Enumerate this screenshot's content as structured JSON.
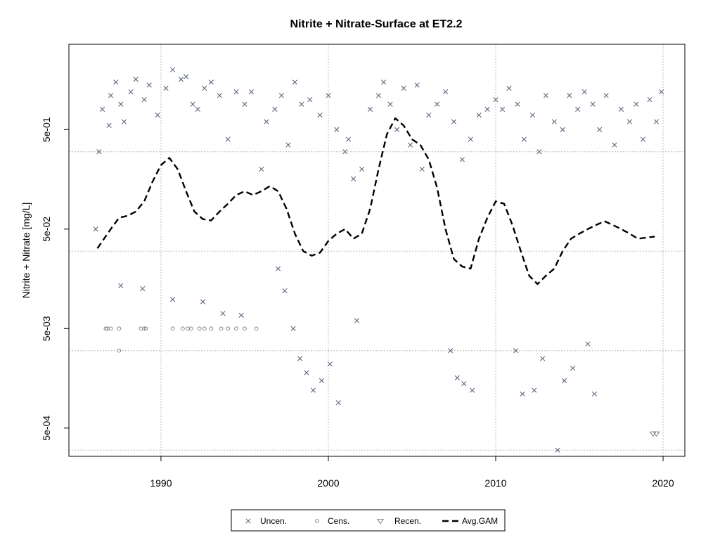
{
  "chart_data": {
    "type": "scatter",
    "title": "Nitrite + Nitrate-Surface at ET2.2",
    "xlabel": "",
    "ylabel": "Nitrite + Nitrate [mg/L]",
    "y_scale": "log10",
    "xlim": [
      1984.5,
      2021.3
    ],
    "ylim": [
      0.00026,
      3.6
    ],
    "x_ticks": [
      1990,
      2000,
      2010,
      2020
    ],
    "x_tick_labels": [
      "1990",
      "2000",
      "2010",
      "2020"
    ],
    "y_ticks": [
      0.0005,
      0.005,
      0.05,
      0.5
    ],
    "y_tick_labels": [
      "5e-04",
      "5e-03",
      "5e-02",
      "5e-01"
    ],
    "y_gridlines": [
      0.0003,
      0.003,
      0.03,
      0.3
    ],
    "x_gridlines": [
      1990,
      2000,
      2010,
      2020
    ],
    "grid": true,
    "legend_position": "bottom-center",
    "legend": [
      {
        "name": "Uncen.",
        "symbol": "x"
      },
      {
        "name": "Cens.",
        "symbol": "circle"
      },
      {
        "name": "Recen.",
        "symbol": "triangle-down"
      },
      {
        "name": "Avg.GAM",
        "symbol": "dashed-line"
      }
    ],
    "colors": {
      "points": "#4f5b75",
      "gam": "#000000",
      "grid": "#bebebe"
    },
    "series": [
      {
        "name": "Uncen.",
        "marker": "x",
        "x": [
          1986.1,
          1986.3,
          1986.5,
          1986.9,
          1987.0,
          1987.3,
          1987.6,
          1987.8,
          1988.2,
          1988.5,
          1989.0,
          1989.3,
          1989.8,
          1990.3,
          1990.7,
          1991.2,
          1991.5,
          1991.9,
          1992.2,
          1992.6,
          1993.0,
          1993.5,
          1994.0,
          1994.5,
          1995.0,
          1995.4,
          1996.0,
          1996.3,
          1996.8,
          1997.2,
          1997.6,
          1998.0,
          1998.4,
          1998.9,
          1999.5,
          2000.0,
          2000.5,
          2001.0,
          2001.2,
          2001.5,
          2002.0,
          2002.5,
          2003.0,
          2003.3,
          2003.7,
          2004.1,
          2004.5,
          2004.9,
          2005.3,
          2005.6,
          2006.0,
          2006.5,
          2007.0,
          2007.5,
          2008.0,
          2008.5,
          2009.0,
          2009.5,
          2010.0,
          2010.4,
          2010.8,
          2011.3,
          2011.7,
          2012.2,
          2012.6,
          2013.0,
          2013.5,
          2014.0,
          2014.4,
          2014.9,
          2015.3,
          2015.8,
          2016.2,
          2016.6,
          2017.1,
          2017.5,
          2018.0,
          2018.4,
          2018.8,
          2019.2,
          2019.6,
          2019.9,
          1997.0,
          1997.4,
          1997.9,
          1998.3,
          1998.7,
          1999.1,
          1999.6,
          2000.1,
          2000.6,
          2001.7,
          2007.3,
          2007.7,
          2008.1,
          2008.6,
          2011.2,
          2011.6,
          2012.3,
          2012.8,
          2013.7,
          2014.1,
          2014.6,
          2015.5,
          2015.9,
          1993.7,
          1994.8,
          1992.5,
          1990.7,
          1988.9,
          1987.6
        ],
        "y": [
          0.05,
          0.3,
          0.8,
          0.55,
          1.1,
          1.5,
          0.9,
          0.6,
          1.2,
          1.6,
          1.0,
          1.4,
          0.7,
          1.3,
          2.0,
          1.6,
          1.7,
          0.9,
          0.8,
          1.3,
          1.5,
          1.1,
          0.4,
          1.2,
          0.9,
          1.2,
          0.2,
          0.6,
          0.8,
          1.1,
          0.35,
          1.5,
          0.9,
          1.0,
          0.7,
          1.1,
          0.5,
          0.3,
          0.4,
          0.16,
          0.2,
          0.8,
          1.1,
          1.5,
          0.9,
          0.5,
          1.3,
          0.35,
          1.4,
          0.2,
          0.7,
          0.9,
          1.2,
          0.6,
          0.25,
          0.4,
          0.7,
          0.8,
          1.0,
          0.8,
          1.3,
          0.9,
          0.4,
          0.7,
          0.3,
          1.1,
          0.6,
          0.5,
          1.1,
          0.8,
          1.2,
          0.9,
          0.5,
          1.1,
          0.35,
          0.8,
          0.6,
          0.9,
          0.4,
          1.0,
          0.6,
          1.2,
          0.02,
          0.012,
          0.005,
          0.0025,
          0.0018,
          0.0012,
          0.0015,
          0.0022,
          0.0009,
          0.006,
          0.003,
          0.0016,
          0.0014,
          0.0012,
          0.003,
          0.0011,
          0.0012,
          0.0025,
          0.0003,
          0.0015,
          0.002,
          0.0035,
          0.0011,
          0.0071,
          0.0068,
          0.0093,
          0.0098,
          0.0126,
          0.0135
        ]
      },
      {
        "name": "Cens.",
        "marker": "circle",
        "x": [
          1986.7,
          1986.8,
          1987.0,
          1987.5,
          1987.5,
          1988.8,
          1989.0,
          1989.1,
          1990.7,
          1991.3,
          1991.6,
          1991.8,
          1992.3,
          1992.6,
          1993.0,
          1993.6,
          1994.0,
          1994.5,
          1995.0,
          1995.7
        ],
        "y": [
          0.005,
          0.005,
          0.005,
          0.005,
          0.003,
          0.005,
          0.005,
          0.005,
          0.005,
          0.005,
          0.005,
          0.005,
          0.005,
          0.005,
          0.005,
          0.005,
          0.005,
          0.005,
          0.005,
          0.005
        ]
      },
      {
        "name": "Recen.",
        "marker": "triangle-down",
        "x": [
          2019.4,
          2019.6
        ],
        "y": [
          0.00044,
          0.00044
        ]
      },
      {
        "name": "Avg.GAM",
        "marker": "dashed-line",
        "x": [
          1986.2,
          1987.0,
          1987.5,
          1988.0,
          1988.5,
          1989.0,
          1989.5,
          1990.0,
          1990.5,
          1991.0,
          1991.5,
          1992.0,
          1992.5,
          1993.0,
          1993.5,
          1994.0,
          1994.5,
          1995.0,
          1995.5,
          1996.0,
          1996.5,
          1997.0,
          1997.5,
          1998.0,
          1998.5,
          1999.0,
          1999.5,
          2000.0,
          2000.5,
          2001.0,
          2001.5,
          2002.0,
          2002.5,
          2003.0,
          2003.5,
          2004.0,
          2004.5,
          2005.0,
          2005.5,
          2006.0,
          2006.5,
          2007.0,
          2007.5,
          2008.0,
          2008.5,
          2009.0,
          2009.5,
          2010.0,
          2010.5,
          2011.0,
          2011.5,
          2012.0,
          2012.5,
          2013.0,
          2013.5,
          2014.0,
          2014.5,
          2015.0,
          2015.5,
          2016.0,
          2016.5,
          2017.0,
          2017.5,
          2018.0,
          2018.5,
          2019.0,
          2019.5
        ],
        "y": [
          0.032,
          0.05,
          0.065,
          0.068,
          0.075,
          0.095,
          0.15,
          0.22,
          0.26,
          0.2,
          0.12,
          0.075,
          0.063,
          0.061,
          0.075,
          0.09,
          0.11,
          0.12,
          0.11,
          0.12,
          0.135,
          0.12,
          0.08,
          0.045,
          0.03,
          0.027,
          0.029,
          0.038,
          0.045,
          0.05,
          0.04,
          0.045,
          0.08,
          0.2,
          0.45,
          0.65,
          0.55,
          0.4,
          0.35,
          0.25,
          0.13,
          0.05,
          0.025,
          0.021,
          0.02,
          0.04,
          0.065,
          0.095,
          0.09,
          0.055,
          0.03,
          0.017,
          0.014,
          0.017,
          0.02,
          0.03,
          0.04,
          0.045,
          0.05,
          0.055,
          0.06,
          0.055,
          0.05,
          0.045,
          0.04,
          0.041,
          0.042
        ]
      }
    ]
  }
}
